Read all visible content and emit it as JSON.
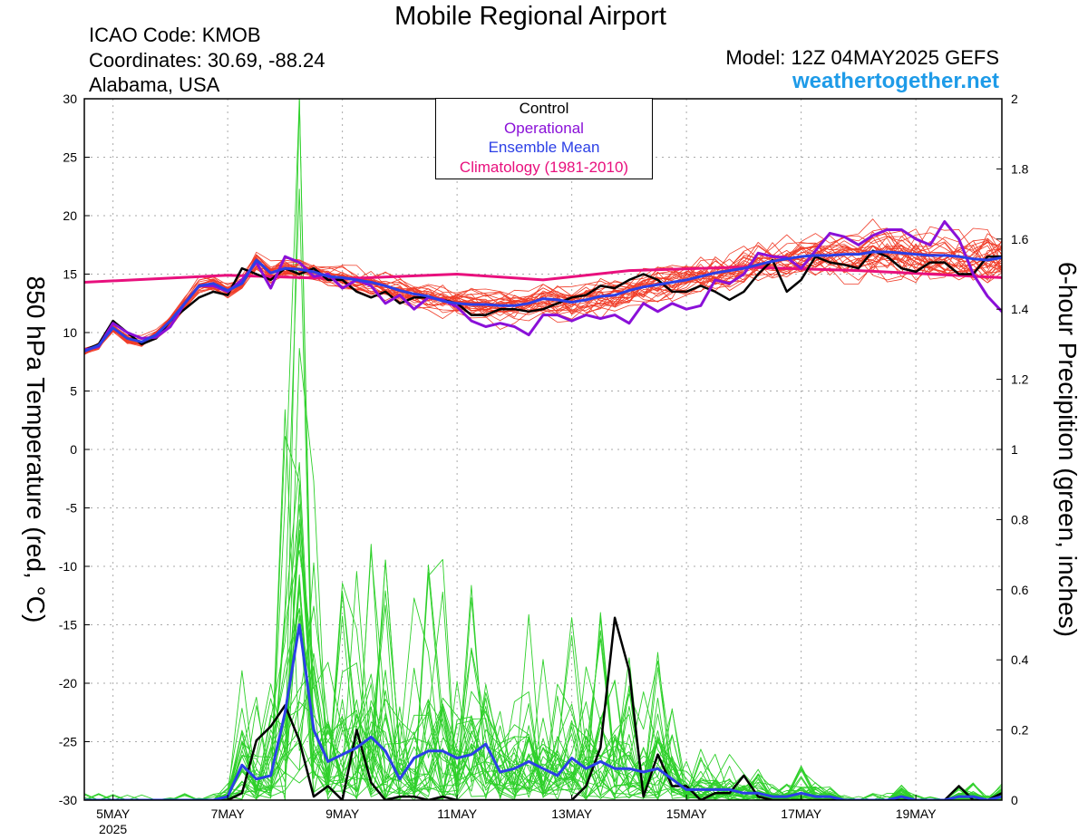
{
  "header": {
    "title": "Mobile Regional Airport",
    "icao": "ICAO Code: KMOB",
    "coordinates": "Coordinates: 30.69, -88.24",
    "region": "Alabama, USA",
    "model": "Model: 12Z 04MAY2025 GEFS",
    "site": "weathertogether.net"
  },
  "legend": [
    {
      "label": "Control",
      "color": "#000000"
    },
    {
      "label": "Operational",
      "color": "#8a10d8"
    },
    {
      "label": "Ensemble Mean",
      "color": "#2b3fe6"
    },
    {
      "label": "Climatology (1981-2010)",
      "color": "#e8107d"
    }
  ],
  "chart_data": {
    "type": "line",
    "ylabel": "850 hPa Temperature (red, °C)",
    "y2label": "6-hour Precipition (green, inches)",
    "ylim": [
      -30,
      30
    ],
    "y2lim": [
      0,
      2
    ],
    "yticks": [
      30,
      25,
      20,
      15,
      10,
      5,
      0,
      -5,
      -10,
      -15,
      -20,
      -25,
      -30
    ],
    "y2ticks": [
      "2",
      "1.8",
      "1.6",
      "1.4",
      "1.2",
      "1",
      "0.8",
      "0.6",
      "0.4",
      "0.2",
      "0"
    ],
    "xticks": [
      {
        "label": "5MAY",
        "sub": "2025",
        "day": 5
      },
      {
        "label": "7MAY",
        "day": 7
      },
      {
        "label": "9MAY",
        "day": 9
      },
      {
        "label": "11MAY",
        "day": 11
      },
      {
        "label": "13MAY",
        "day": 13
      },
      {
        "label": "15MAY",
        "day": 15
      },
      {
        "label": "17MAY",
        "day": 17
      },
      {
        "label": "19MAY",
        "day": 19
      }
    ],
    "x_range_days": [
      4.5,
      20.5
    ],
    "x_step_days": 0.25,
    "grid": true,
    "colors": {
      "members_temp": "#f03c28",
      "members_precip": "#2ed02a",
      "control": "#000000",
      "operational": "#8a10d8",
      "mean": "#2b3fe6",
      "climatology": "#e8107d"
    },
    "climatology": {
      "x": [
        4.5,
        7,
        9,
        11,
        12.5,
        14,
        16,
        18,
        20.5
      ],
      "y": [
        14.3,
        14.9,
        14.6,
        15.0,
        14.5,
        15.3,
        15.6,
        15.3,
        14.7
      ]
    },
    "temperature": {
      "control": [
        8.5,
        9,
        11,
        10,
        9,
        9.5,
        11,
        12,
        13,
        13.5,
        13.2,
        15.5,
        15,
        14.5,
        15.5,
        15,
        15.5,
        14.5,
        14.5,
        13.5,
        13,
        13.5,
        12.5,
        13,
        13,
        12.8,
        12.5,
        11.5,
        11.5,
        12,
        12,
        11.8,
        12,
        12.5,
        13,
        13.2,
        14,
        13.8,
        14.5,
        15,
        14.5,
        13.5,
        13.5,
        14,
        13.5,
        12.8,
        13.5,
        15,
        16.2,
        13.5,
        14.5,
        16.5,
        16,
        15.8,
        15.5,
        17,
        16.5,
        15.5,
        15.2,
        16,
        16,
        15,
        15,
        16.5,
        16.5
      ],
      "operational": [
        8.5,
        8.8,
        10.8,
        10,
        9.5,
        9.6,
        10.5,
        12.5,
        14,
        14,
        13.5,
        14.5,
        16,
        13.8,
        16.5,
        16,
        14.8,
        15,
        13.8,
        14.5,
        14,
        12.5,
        13.2,
        12,
        13,
        12.8,
        12.2,
        11,
        10.5,
        10.8,
        10.5,
        9.8,
        11.5,
        11.5,
        11,
        11.5,
        11.2,
        11.5,
        10.8,
        12.5,
        11.8,
        12.5,
        12,
        12.3,
        14.5,
        14.2,
        15,
        16.8,
        16.5,
        16.4,
        15.5,
        17,
        18.5,
        18.2,
        17.5,
        18.3,
        18.8,
        18.8,
        18,
        17.5,
        19.5,
        18,
        15,
        13.1,
        11.8,
        12.3
      ],
      "mean": [
        8.4,
        8.9,
        10.4,
        9.5,
        9.2,
        9.8,
        11,
        12.5,
        14,
        14.2,
        13.6,
        14.2,
        16.2,
        15.1,
        15.5,
        15.4,
        15.2,
        14.8,
        14.7,
        14.5,
        14.3,
        14,
        13.6,
        13.3,
        13.1,
        12.7,
        12.5,
        12.4,
        12.4,
        12.3,
        12.3,
        12.5,
        12.9,
        12.8,
        12.6,
        12.8,
        13.1,
        13.2,
        13.6,
        13.9,
        14.1,
        14.3,
        14.5,
        14.8,
        15.1,
        15.3,
        15.5,
        15.8,
        16.1,
        16.3,
        16.5,
        16.6,
        16.6,
        16.7,
        16.7,
        16.9,
        16.9,
        16.8,
        16.7,
        16.6,
        16.6,
        16.5,
        16.3,
        16.2,
        16.4,
        16.2
      ]
    },
    "precipitation": {
      "control": [
        0,
        0,
        0,
        0,
        0,
        0,
        0,
        0,
        0,
        0,
        0,
        0.02,
        0.17,
        0.21,
        0.27,
        0.17,
        0.01,
        0.04,
        0,
        0.2,
        0.05,
        0,
        0.01,
        0.01,
        0,
        0.01,
        0,
        0,
        0,
        0,
        0,
        0,
        0,
        0,
        0,
        0.04,
        0.15,
        0.52,
        0.37,
        0.01,
        0.13,
        0.04,
        0.04,
        0,
        0.02,
        0.02,
        0.07,
        0.01,
        0,
        0,
        0,
        0,
        0,
        0,
        0,
        0,
        0,
        0,
        0,
        0,
        0,
        0.04,
        0,
        0,
        0.02,
        0.07
      ],
      "mean": [
        0,
        0,
        0,
        0,
        0,
        0,
        0,
        0,
        0,
        0,
        0.01,
        0.1,
        0.06,
        0.07,
        0.25,
        0.5,
        0.2,
        0.11,
        0.13,
        0.15,
        0.18,
        0.14,
        0.06,
        0.12,
        0.14,
        0.14,
        0.12,
        0.13,
        0.16,
        0.08,
        0.09,
        0.11,
        0.09,
        0.07,
        0.12,
        0.09,
        0.11,
        0.09,
        0.09,
        0.08,
        0.09,
        0.06,
        0.03,
        0.03,
        0.03,
        0.03,
        0.02,
        0.02,
        0.01,
        0.01,
        0.02,
        0.01,
        0.01,
        0,
        0,
        0,
        0,
        0.01,
        0,
        0,
        0,
        0.01,
        0.01,
        0,
        0.01,
        0.01
      ]
    }
  }
}
